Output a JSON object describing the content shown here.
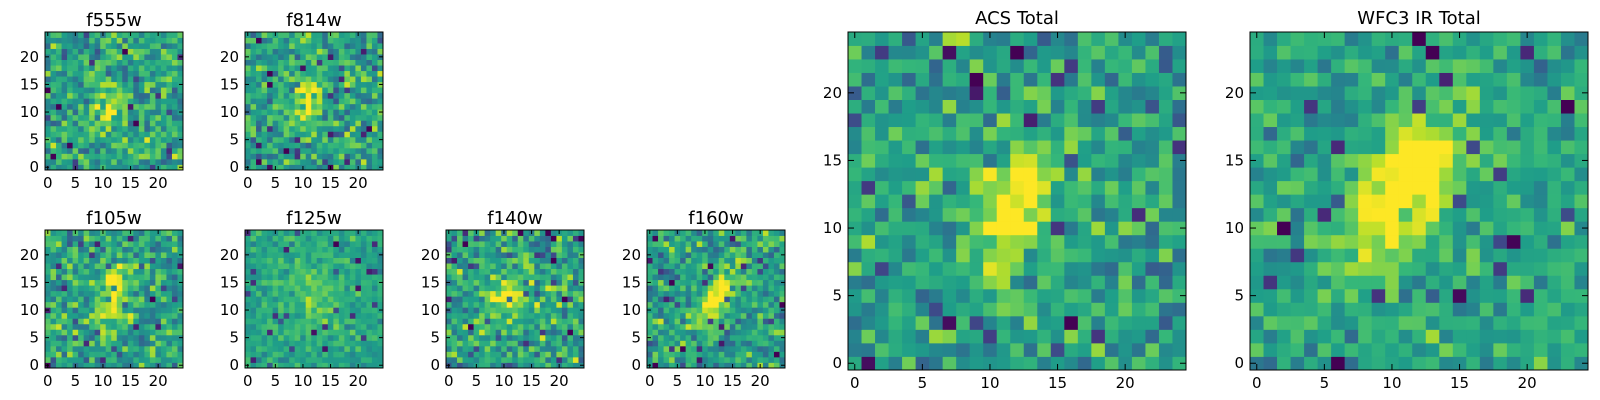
{
  "chart_data": [
    {
      "type": "heatmap",
      "title": "f555w",
      "size": 25,
      "xticks": [
        "0",
        "5",
        "10",
        "15",
        "20"
      ],
      "yticks": [
        "0",
        "5",
        "10",
        "15",
        "20"
      ],
      "noise": 0.42,
      "peak": {
        "x": 11,
        "y": 11,
        "amp": 0.35,
        "sx": 1.8,
        "sy": 2.8,
        "rot": 0.3
      },
      "seed": 11
    },
    {
      "type": "heatmap",
      "title": "f814w",
      "size": 25,
      "xticks": [
        "0",
        "5",
        "10",
        "15",
        "20"
      ],
      "yticks": [
        "0",
        "5",
        "10",
        "15",
        "20"
      ],
      "noise": 0.4,
      "peak": {
        "x": 11,
        "y": 12,
        "amp": 0.45,
        "sx": 1.8,
        "sy": 3.0,
        "rot": 0.3
      },
      "seed": 23
    },
    {
      "type": "heatmap",
      "title": "f105w",
      "size": 25,
      "xticks": [
        "0",
        "5",
        "10",
        "15",
        "20"
      ],
      "yticks": [
        "0",
        "5",
        "10",
        "15",
        "20"
      ],
      "noise": 0.4,
      "peak": {
        "x": 12,
        "y": 13,
        "amp": 0.35,
        "sx": 2.2,
        "sy": 4.5,
        "rot": 0.2
      },
      "seed": 37
    },
    {
      "type": "heatmap",
      "title": "f125w",
      "size": 25,
      "xticks": [
        "0",
        "5",
        "10",
        "15",
        "20"
      ],
      "yticks": [
        "0",
        "5",
        "10",
        "15",
        "20"
      ],
      "noise": 0.22,
      "peak": {
        "x": 12,
        "y": 12,
        "amp": 0.15,
        "sx": 4.0,
        "sy": 5.0,
        "rot": 0.2
      },
      "seed": 41
    },
    {
      "type": "heatmap",
      "title": "f140w",
      "size": 25,
      "xticks": [
        "0",
        "5",
        "10",
        "15",
        "20"
      ],
      "yticks": [
        "0",
        "5",
        "10",
        "15",
        "20"
      ],
      "noise": 0.45,
      "peak": {
        "x": 10,
        "y": 12,
        "amp": 0.35,
        "sx": 2.2,
        "sy": 3.5,
        "rot": 0.4
      },
      "seed": 53
    },
    {
      "type": "heatmap",
      "title": "f160w",
      "size": 25,
      "xticks": [
        "0",
        "5",
        "10",
        "15",
        "20"
      ],
      "yticks": [
        "0",
        "5",
        "10",
        "15",
        "20"
      ],
      "noise": 0.4,
      "peak": {
        "x": 12,
        "y": 12,
        "amp": 0.55,
        "sx": 1.6,
        "sy": 4.0,
        "rot": 0.6
      },
      "seed": 67
    },
    {
      "type": "heatmap",
      "title": "ACS Total",
      "size": 25,
      "xticks": [
        "0",
        "5",
        "10",
        "15",
        "20"
      ],
      "yticks": [
        "0",
        "5",
        "10",
        "15",
        "20"
      ],
      "noise": 0.38,
      "peak": {
        "x": 12,
        "y": 12,
        "amp": 0.55,
        "sx": 1.6,
        "sy": 3.2,
        "rot": 0.25
      },
      "seed": 79
    },
    {
      "type": "heatmap",
      "title": "WFC3 IR Total",
      "size": 25,
      "xticks": [
        "0",
        "5",
        "10",
        "15",
        "20"
      ],
      "yticks": [
        "0",
        "5",
        "10",
        "15",
        "20"
      ],
      "noise": 0.3,
      "peak": {
        "x": 11,
        "y": 13,
        "amp": 0.65,
        "sx": 2.0,
        "sy": 4.2,
        "rot": 0.55
      },
      "seed": 97
    }
  ],
  "colormap": [
    "#440154",
    "#482878",
    "#3e4989",
    "#31688e",
    "#26828e",
    "#1f9e89",
    "#35b779",
    "#6ece58",
    "#b5de2b",
    "#fde725"
  ]
}
